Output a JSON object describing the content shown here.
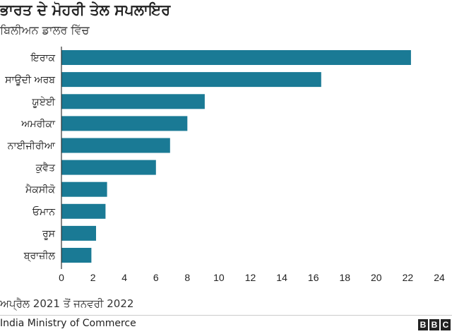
{
  "title": "ਭਾਰਤ ਦੇ ਮੋਹਰੀ ਤੇਲ ਸਪਲਾਇਰ",
  "subtitle": "ਬਿਲੀਅਨ ਡਾਲਰ ਵਿੱਚ",
  "note": "ਅਪ੍ਰੈਲ 2021 ਤੋਂ ਜਨਵਰੀ 2022",
  "source": "India Ministry of Commerce",
  "logo": [
    "B",
    "B",
    "C"
  ],
  "colors": {
    "bar": "#1a7a95",
    "axis": "#333333",
    "text": "#222222"
  },
  "chart_data": {
    "type": "bar",
    "orientation": "horizontal",
    "categories": [
      "ਇਰਾਕ",
      "ਸਾਊਦੀ ਅਰਬ",
      "ਯੂਏਈ",
      "ਅਮਰੀਕਾ",
      "ਨਾਈਜੀਰੀਆ",
      "ਕੁਵੈਤ",
      "ਮੈਕਸੀਕੋ",
      "ਓਮਾਨ",
      "ਰੂਸ",
      "ਬ੍ਰਾਜ਼ੀਲ"
    ],
    "values": [
      22.2,
      16.5,
      9.1,
      8.0,
      6.9,
      6.0,
      2.9,
      2.8,
      2.2,
      1.9
    ],
    "xlim": [
      0,
      24
    ],
    "xticks": [
      "0",
      "2",
      "4",
      "6",
      "8",
      "10",
      "12",
      "14",
      "16",
      "18",
      "20",
      "22",
      "24"
    ],
    "grid": false
  }
}
